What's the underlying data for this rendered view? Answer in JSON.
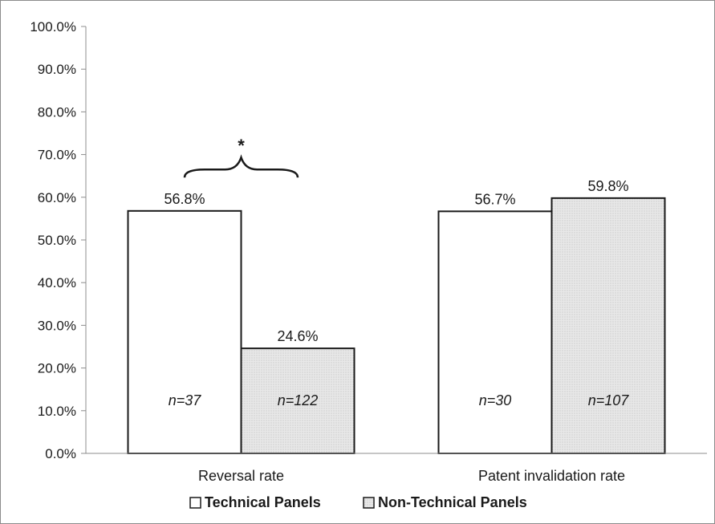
{
  "chart_data": {
    "type": "bar",
    "categories": [
      "Reversal rate",
      "Patent invalidation rate"
    ],
    "series": [
      {
        "name": "Technical Panels",
        "values": [
          56.8,
          56.7
        ],
        "n_labels": [
          "n=37",
          "n=30"
        ],
        "color": "#ffffff",
        "pattern": "none"
      },
      {
        "name": "Non-Technical Panels",
        "values": [
          24.6,
          59.8
        ],
        "n_labels": [
          "n=122",
          "n=107"
        ],
        "color": "#e6e6e6",
        "pattern": "dotted"
      }
    ],
    "value_labels": [
      [
        "56.8%",
        "56.7%"
      ],
      [
        "24.6%",
        "59.8%"
      ]
    ],
    "ylim": [
      0,
      100
    ],
    "y_ticks": [
      0,
      10,
      20,
      30,
      40,
      50,
      60,
      70,
      80,
      90,
      100
    ],
    "y_tick_labels": [
      "0.0%",
      "10.0%",
      "20.0%",
      "30.0%",
      "40.0%",
      "50.0%",
      "60.0%",
      "70.0%",
      "80.0%",
      "90.0%",
      "100.0%"
    ],
    "grid": false,
    "legend_position": "bottom",
    "annotation": {
      "text": "*",
      "category_index": 0,
      "shape": "curly-brace"
    },
    "xlabel": "",
    "ylabel": ""
  }
}
